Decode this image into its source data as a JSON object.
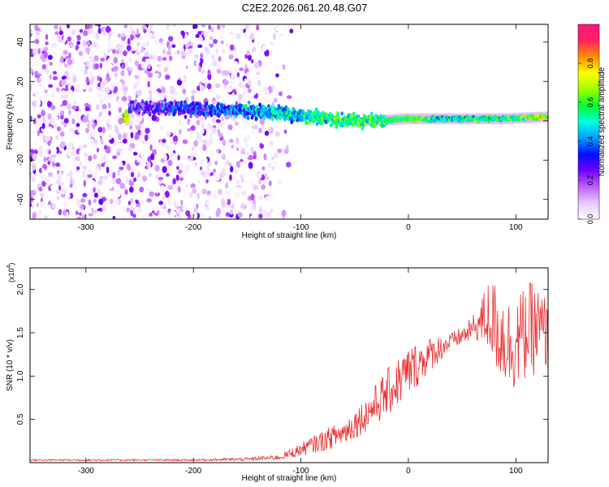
{
  "figure": {
    "title": "C2E2.2026.061.20.48.G07"
  },
  "chart_data": [
    {
      "type": "heatmap",
      "xlabel": "Height of straight line (km)",
      "ylabel": "Frequency (Hz)",
      "xlim": [
        -352,
        130
      ],
      "ylim": [
        -50,
        49
      ],
      "xticks": [
        -300,
        -200,
        -100,
        0,
        100
      ],
      "yticks": [
        -40,
        -20,
        0,
        20,
        40
      ],
      "colorbar": {
        "label": "Normalized spectral amplitude",
        "range": [
          0,
          1
        ],
        "ticks": [
          "0.0",
          "0.2",
          "0.4",
          "0.6",
          "0.8"
        ],
        "tick_values": [
          0,
          0.2,
          0.4,
          0.6,
          0.8
        ],
        "colors": [
          "#ffffff",
          "#e6c8ff",
          "#c060ff",
          "#7000ff",
          "#0010ff",
          "#00a0ff",
          "#00ffe0",
          "#00ff30",
          "#a0ff00",
          "#ffff00",
          "#ff9000",
          "#ff2060",
          "#ff1880"
        ]
      },
      "signal_track": [
        {
          "x": -260,
          "y": 7,
          "amp": 0.25
        },
        {
          "x": -200,
          "y": 6,
          "amp": 0.3
        },
        {
          "x": -150,
          "y": 5,
          "amp": 0.4
        },
        {
          "x": -120,
          "y": 4,
          "amp": 0.45
        },
        {
          "x": -90,
          "y": 2,
          "amp": 0.5
        },
        {
          "x": -60,
          "y": 0,
          "amp": 0.55
        },
        {
          "x": -30,
          "y": 0,
          "amp": 0.55
        },
        {
          "x": 0,
          "y": 1,
          "amp": 0.6
        },
        {
          "x": 30,
          "y": 1,
          "amp": 0.5
        },
        {
          "x": 90,
          "y": 1,
          "amp": 0.55
        },
        {
          "x": 130,
          "y": 2,
          "amp": 0.7
        }
      ],
      "noise_region_x": [
        -352,
        -120
      ]
    },
    {
      "type": "line",
      "xlabel": "Height of straight line (km)",
      "ylabel": "SNR (10 * v/v)",
      "y_multiplier": "(x10",
      "y_multiplier_exp": "4",
      "y_multiplier_close": ")",
      "xlim": [
        -352,
        130
      ],
      "ylim": [
        0,
        2.25
      ],
      "xticks": [
        -300,
        -200,
        -100,
        0,
        100
      ],
      "yticks": [
        0.5,
        1.0,
        1.5,
        2.0
      ],
      "ytick_labels": [
        "0.5",
        "1.0",
        "1.5",
        "2.0"
      ],
      "series": [
        {
          "name": "SNR",
          "color": "#e83030",
          "envelope_x": [
            -352,
            -200,
            -150,
            -120,
            -100,
            -80,
            -60,
            -40,
            -20,
            0,
            20,
            40,
            55,
            65,
            75,
            85,
            95,
            105,
            115,
            125,
            130
          ],
          "envelope_y": [
            0.03,
            0.03,
            0.04,
            0.06,
            0.15,
            0.25,
            0.35,
            0.55,
            0.8,
            1.05,
            1.25,
            1.4,
            1.5,
            1.6,
            1.7,
            1.5,
            1.35,
            1.45,
            1.55,
            1.5,
            1.45
          ],
          "noise_amplitude": [
            0.01,
            0.01,
            0.02,
            0.03,
            0.08,
            0.12,
            0.15,
            0.2,
            0.28,
            0.3,
            0.2,
            0.1,
            0.12,
            0.2,
            0.45,
            0.55,
            0.55,
            0.55,
            0.55,
            0.5,
            0.4
          ]
        }
      ]
    }
  ]
}
